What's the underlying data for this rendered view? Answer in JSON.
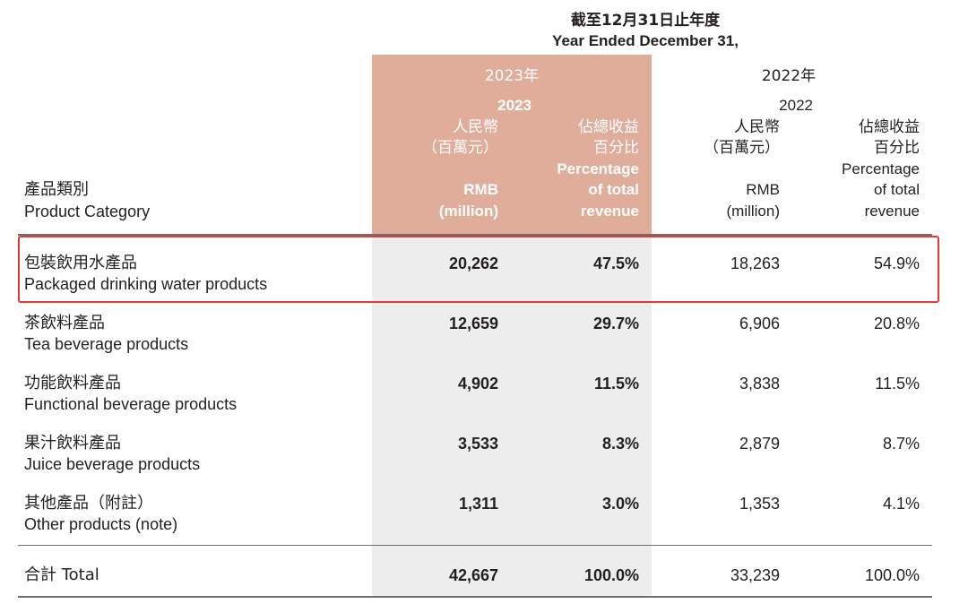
{
  "header": {
    "period_cn": "截至12月31日止年度",
    "period_en": "Year Ended December 31,",
    "y2023_year_cn": "2023年",
    "y2023_year": "2023",
    "y2022_year_cn": "2022年",
    "y2022_year": "2022",
    "rmb_cn": "人民幣",
    "million_cn": "（百萬元）",
    "pct_cn_1": "佔總收益",
    "pct_cn_2": "百分比",
    "rmb_en": "RMB",
    "million_en": "(million)",
    "pct_en_1": "Percentage",
    "pct_en_2": "of total",
    "pct_en_3": "revenue",
    "category_cn": "產品類別",
    "category_en": "Product Category"
  },
  "rows": [
    {
      "cn": "包裝飲用水產品",
      "en": "Packaged drinking water products",
      "rmb_2023": "20,262",
      "pct_2023": "47.5%",
      "rmb_2022": "18,263",
      "pct_2022": "54.9%"
    },
    {
      "cn": "茶飲料產品",
      "en": "Tea beverage products",
      "rmb_2023": "12,659",
      "pct_2023": "29.7%",
      "rmb_2022": "6,906",
      "pct_2022": "20.8%"
    },
    {
      "cn": "功能飲料產品",
      "en": "Functional beverage products",
      "rmb_2023": "4,902",
      "pct_2023": "11.5%",
      "rmb_2022": "3,838",
      "pct_2022": "11.5%"
    },
    {
      "cn": "果汁飲料產品",
      "en": "Juice beverage products",
      "rmb_2023": "3,533",
      "pct_2023": "8.3%",
      "rmb_2022": "2,879",
      "pct_2022": "8.7%"
    },
    {
      "cn": "其他產品（附註）",
      "en": "Other products (note)",
      "rmb_2023": "1,311",
      "pct_2023": "3.0%",
      "rmb_2022": "1,353",
      "pct_2022": "4.1%"
    }
  ],
  "total": {
    "label": "合計 Total",
    "rmb_2023": "42,667",
    "pct_2023": "100.0%",
    "rmb_2022": "33,239",
    "pct_2022": "100.0%"
  },
  "colors": {
    "highlight_column": "#e0ad9b",
    "shaded_column": "#ededed",
    "selection_box": "#e53935"
  }
}
